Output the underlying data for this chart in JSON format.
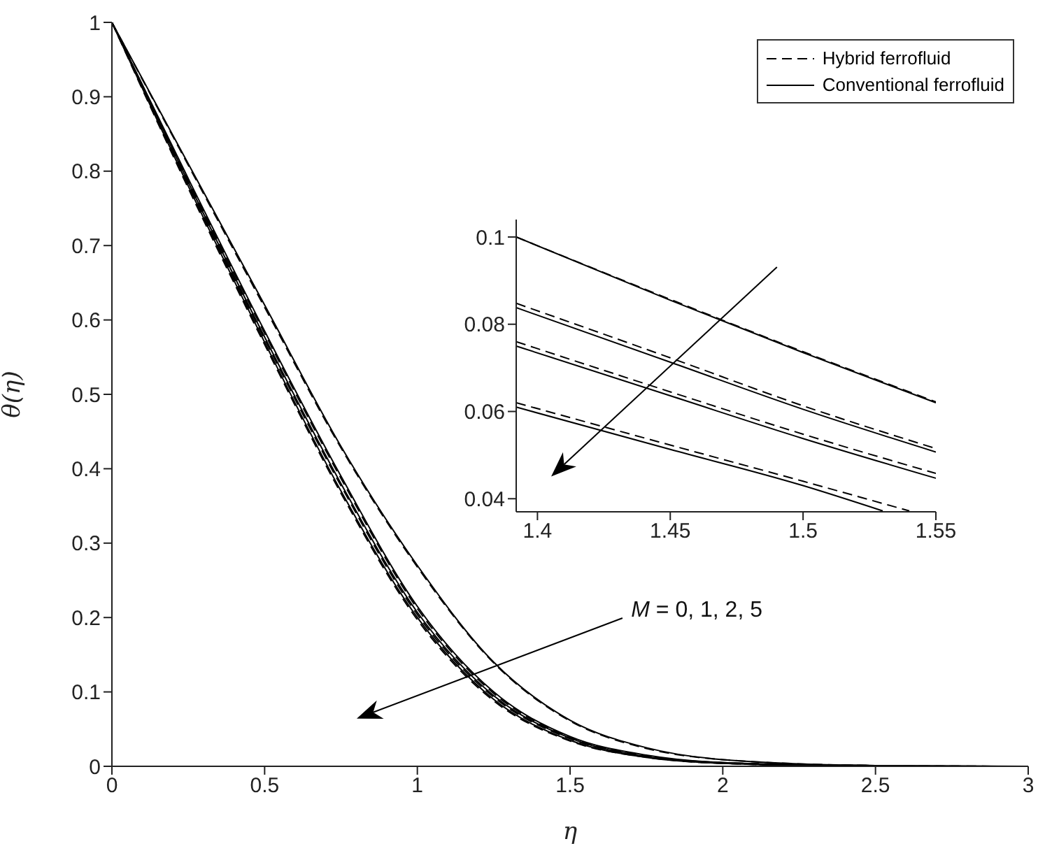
{
  "chart_data": [
    {
      "type": "line",
      "xlabel": "η",
      "ylabel": "θ(η)",
      "xlim": [
        0,
        3
      ],
      "ylim": [
        0,
        1
      ],
      "xticks": [
        0,
        0.5,
        1,
        1.5,
        2,
        2.5,
        3
      ],
      "yticks": [
        0,
        0.1,
        0.2,
        0.3,
        0.4,
        0.5,
        0.6,
        0.7,
        0.8,
        0.9,
        1
      ],
      "grid": false,
      "legend": "top right",
      "annotations": [
        "M = 0, 1, 2, 5"
      ],
      "series": [
        {
          "name": "Hybrid ferrofluid",
          "color": "#000000",
          "line_style": "dashed",
          "x": [
            0,
            0.25,
            0.5,
            0.75,
            1,
            1.25,
            1.5,
            1.75,
            2,
            2.5,
            2.95
          ],
          "values": [
            1,
            0.808,
            0.617,
            0.428,
            0.268,
            0.139,
            0.061,
            0.024,
            0.009,
            0.001,
            0
          ]
        },
        {
          "color": "#000000",
          "line_style": "dashed",
          "x": [
            0,
            0.25,
            0.5,
            0.75,
            1,
            1.25,
            1.5,
            1.75,
            2,
            2.5,
            2.85
          ],
          "values": [
            1,
            0.787,
            0.582,
            0.387,
            0.212,
            0.098,
            0.039,
            0.014,
            0.005,
            0.001,
            0
          ]
        },
        {
          "color": "#000000",
          "line_style": "dashed",
          "x": [
            0,
            0.25,
            0.5,
            0.75,
            1,
            1.25,
            1.5,
            1.75,
            2,
            2.5,
            2.75
          ],
          "values": [
            1,
            0.782,
            0.574,
            0.377,
            0.204,
            0.093,
            0.037,
            0.013,
            0.004,
            0,
            0
          ]
        },
        {
          "color": "#000000",
          "line_style": "dashed",
          "x": [
            0,
            0.25,
            0.5,
            0.75,
            1,
            1.25,
            1.5,
            1.75,
            2,
            2.5,
            2.65
          ],
          "values": [
            1,
            0.777,
            0.567,
            0.367,
            0.197,
            0.088,
            0.034,
            0.012,
            0.004,
            0,
            0
          ]
        },
        {
          "name": "Conventional ferrofluid",
          "color": "#000000",
          "line_style": "solid",
          "x": [
            0,
            0.25,
            0.5,
            0.75,
            1,
            1.25,
            1.5,
            1.75,
            2,
            2.5,
            3
          ],
          "values": [
            1,
            0.81,
            0.62,
            0.43,
            0.27,
            0.14,
            0.062,
            0.025,
            0.009,
            0.001,
            0
          ]
        },
        {
          "color": "#000000",
          "line_style": "solid",
          "x": [
            0,
            0.25,
            0.5,
            0.75,
            1,
            1.25,
            1.5,
            1.75,
            2,
            2.5,
            2.9
          ],
          "values": [
            1,
            0.79,
            0.585,
            0.39,
            0.215,
            0.1,
            0.04,
            0.015,
            0.005,
            0.001,
            0
          ]
        },
        {
          "color": "#000000",
          "line_style": "solid",
          "x": [
            0,
            0.25,
            0.5,
            0.75,
            1,
            1.25,
            1.5,
            1.75,
            2,
            2.5,
            2.8
          ],
          "values": [
            1,
            0.785,
            0.577,
            0.38,
            0.207,
            0.095,
            0.038,
            0.013,
            0.005,
            0,
            0
          ]
        },
        {
          "color": "#000000",
          "line_style": "solid",
          "x": [
            0,
            0.25,
            0.5,
            0.75,
            1,
            1.25,
            1.5,
            1.75,
            2,
            2.5,
            2.7
          ],
          "values": [
            1,
            0.78,
            0.57,
            0.37,
            0.2,
            0.09,
            0.035,
            0.012,
            0.004,
            0,
            0
          ]
        }
      ]
    },
    {
      "type": "line",
      "xlim": [
        1.392,
        1.55
      ],
      "ylim": [
        0.037,
        0.104
      ],
      "xticks": [
        1.4,
        1.45,
        1.5,
        1.55
      ],
      "yticks": [
        0.04,
        0.06,
        0.08,
        0.1
      ],
      "grid": false,
      "series": [
        {
          "color": "#000000",
          "line_style": "dashed",
          "x": [
            1.392,
            1.45,
            1.5,
            1.55
          ],
          "values": [
            0.1,
            0.0857,
            0.0737,
            0.0622
          ]
        },
        {
          "color": "#000000",
          "line_style": "dashed",
          "x": [
            1.392,
            1.45,
            1.5,
            1.55
          ],
          "values": [
            0.0848,
            0.0723,
            0.0613,
            0.0515
          ]
        },
        {
          "color": "#000000",
          "line_style": "dashed",
          "x": [
            1.392,
            1.45,
            1.5,
            1.55
          ],
          "values": [
            0.076,
            0.0645,
            0.0548,
            0.0458
          ]
        },
        {
          "color": "#000000",
          "line_style": "dashed",
          "x": [
            1.392,
            1.45,
            1.5,
            1.54
          ],
          "values": [
            0.062,
            0.0523,
            0.044,
            0.0372
          ]
        },
        {
          "color": "#000000",
          "line_style": "solid",
          "x": [
            1.392,
            1.45,
            1.5,
            1.55
          ],
          "values": [
            0.1,
            0.0855,
            0.0735,
            0.062
          ]
        },
        {
          "color": "#000000",
          "line_style": "solid",
          "x": [
            1.392,
            1.45,
            1.5,
            1.55
          ],
          "values": [
            0.0838,
            0.0713,
            0.0605,
            0.0507
          ]
        },
        {
          "color": "#000000",
          "line_style": "solid",
          "x": [
            1.392,
            1.45,
            1.5,
            1.55
          ],
          "values": [
            0.075,
            0.0636,
            0.0538,
            0.0447
          ]
        },
        {
          "color": "#000000",
          "line_style": "solid",
          "x": [
            1.392,
            1.45,
            1.5,
            1.53
          ],
          "values": [
            0.061,
            0.0513,
            0.043,
            0.0372
          ]
        }
      ]
    }
  ]
}
